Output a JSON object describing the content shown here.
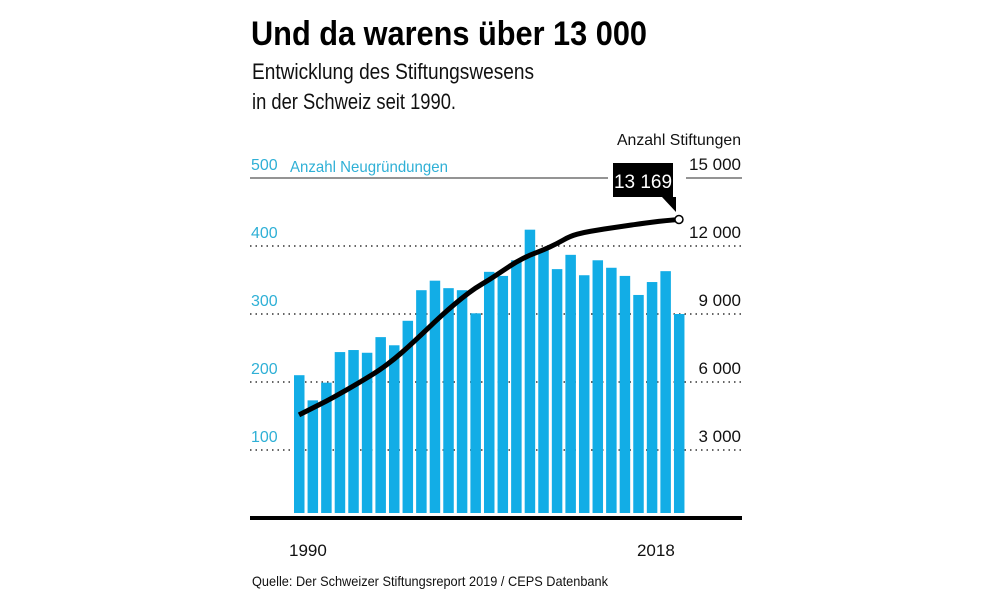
{
  "title": "Und da warens über 13 000",
  "subtitle_line1": "Entwicklung des Stiftungswesens",
  "subtitle_line2": "in der Schweiz seit 1990.",
  "source": "Quelle: Der Schweizer Stiftungsreport 2019 / CEPS Datenbank",
  "colors": {
    "bars": "#12ade6",
    "left_axis_text": "#2fb0d6",
    "line": "#000000"
  },
  "chart_data": {
    "type": "bar+line",
    "x": [
      1990,
      1991,
      1992,
      1993,
      1994,
      1995,
      1996,
      1997,
      1998,
      1999,
      2000,
      2001,
      2002,
      2003,
      2004,
      2005,
      2006,
      2007,
      2008,
      2009,
      2010,
      2011,
      2012,
      2013,
      2014,
      2015,
      2016,
      2017,
      2018
    ],
    "x_tick_labels": [
      "1990",
      "2018"
    ],
    "series": [
      {
        "name": "Anzahl Neugründungen",
        "type": "bar",
        "axis": "left",
        "values": [
          210,
          173,
          199,
          244,
          247,
          243,
          266,
          254,
          290,
          335,
          349,
          338,
          335,
          301,
          362,
          356,
          379,
          424,
          394,
          366,
          387,
          357,
          379,
          368,
          356,
          328,
          347,
          363,
          300
        ]
      },
      {
        "name": "Anzahl Stiftungen",
        "type": "line",
        "axis": "right",
        "values": [
          4550,
          4850,
          5150,
          5480,
          5820,
          6180,
          6550,
          7000,
          7520,
          8080,
          8650,
          9200,
          9700,
          10150,
          10500,
          10900,
          11300,
          11600,
          11820,
          12100,
          12440,
          12600,
          12700,
          12800,
          12880,
          12970,
          13050,
          13120,
          13169
        ]
      }
    ],
    "left_axis": {
      "label": "Anzahl Neugründungen",
      "ylim": [
        0,
        500
      ],
      "ticks": [
        "100",
        "200",
        "300",
        "400",
        "500"
      ]
    },
    "right_axis": {
      "label": "Anzahl Stiftungen",
      "ylim": [
        0,
        15000
      ],
      "ticks": [
        "3000",
        "6000",
        "9000",
        "12 000",
        "15 000"
      ]
    },
    "annotation": "13 169",
    "grid": "dotted horizontal"
  }
}
